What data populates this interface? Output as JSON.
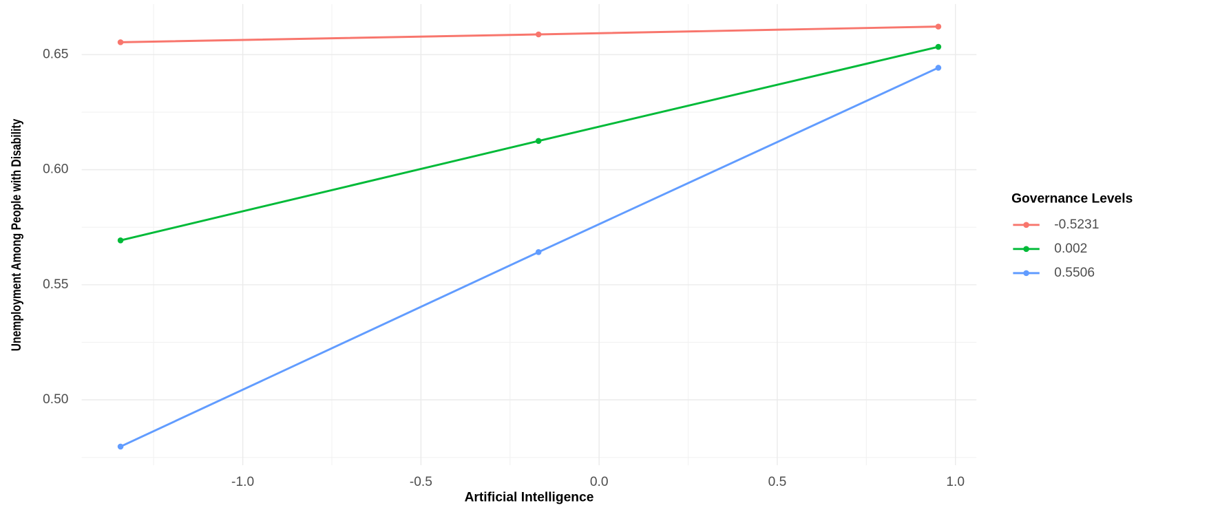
{
  "chart_data": {
    "type": "line",
    "x_label": "Artificial Intelligence",
    "y_label": "Unemployment Among People with Disability",
    "legend_title": "Governance Levels",
    "legend_position": "right",
    "grid": true,
    "x": [
      -1.343,
      -0.17,
      0.952
    ],
    "series": [
      {
        "name": "-0.5231",
        "color": "#f8766d",
        "values": [
          0.6554,
          0.6588,
          0.6622
        ]
      },
      {
        "name": "0.002",
        "color": "#00ba38",
        "values": [
          0.5693,
          0.6125,
          0.6534
        ]
      },
      {
        "name": "0.5506",
        "color": "#619cff",
        "values": [
          0.4797,
          0.5642,
          0.6443
        ]
      }
    ],
    "xlim": [
      -1.452,
      1.059
    ],
    "xticks": [
      {
        "value": -1,
        "label": "-1.0"
      },
      {
        "value": -0.5,
        "label": "-0.5"
      },
      {
        "value": 0,
        "label": "0.0"
      },
      {
        "value": 0.5,
        "label": "0.5"
      },
      {
        "value": 1,
        "label": "1.0"
      }
    ],
    "ylim": [
      0.4716,
      0.672
    ],
    "yticks": [
      {
        "value": 0.5,
        "label": "0.50"
      },
      {
        "value": 0.55,
        "label": "0.55"
      },
      {
        "value": 0.6,
        "label": "0.60"
      },
      {
        "value": 0.65,
        "label": "0.65"
      }
    ]
  }
}
